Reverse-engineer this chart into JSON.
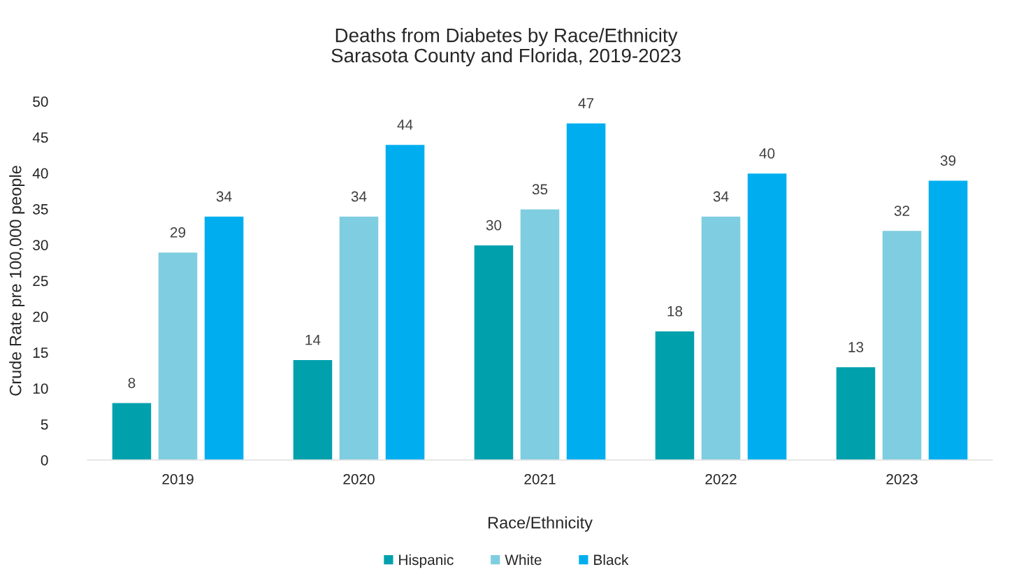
{
  "chart_data": {
    "type": "bar",
    "title": "Deaths from Diabetes by Race/Ethnicity\nSarasota County and Florida, 2019-2023",
    "xlabel": "Race/Ethnicity",
    "ylabel": "Crude Rate pre 100,000 people",
    "categories": [
      "2019",
      "2020",
      "2021",
      "2022",
      "2023"
    ],
    "series": [
      {
        "name": "Hispanic",
        "color": "#00a0ad",
        "values": [
          8,
          14,
          30,
          18,
          13
        ]
      },
      {
        "name": "White",
        "color": "#7fcde0",
        "values": [
          29,
          34,
          35,
          34,
          32
        ]
      },
      {
        "name": "Black",
        "color": "#00aeef",
        "values": [
          34,
          44,
          47,
          40,
          39
        ]
      }
    ],
    "ylim": [
      0,
      50
    ],
    "yticks": [
      0,
      5,
      10,
      15,
      20,
      25,
      30,
      35,
      40,
      45,
      50
    ],
    "data_labels": true,
    "grid": false,
    "legend": "bottom"
  }
}
